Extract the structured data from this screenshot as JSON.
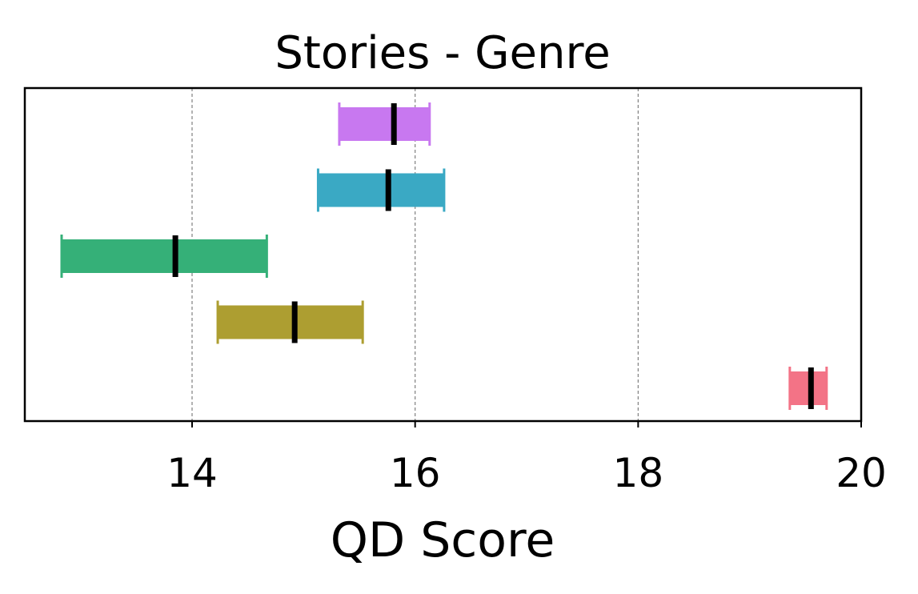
{
  "chart_data": {
    "type": "bar",
    "orientation": "horizontal",
    "title": "Stories - Genre",
    "xlabel": "QD Score",
    "ylabel": "",
    "xlim": [
      12.5,
      20.0
    ],
    "xticks": [
      14,
      16,
      18,
      20
    ],
    "xtick_labels": [
      "14",
      "16",
      "18",
      "20"
    ],
    "grid": "x-dashed",
    "series": [
      {
        "color": "#c878f0",
        "low": 15.32,
        "high": 16.13,
        "mean": 15.81
      },
      {
        "color": "#3aa9c4",
        "low": 15.13,
        "high": 16.26,
        "mean": 15.76
      },
      {
        "color": "#35b078",
        "low": 12.83,
        "high": 14.67,
        "mean": 13.85
      },
      {
        "color": "#ad9e31",
        "low": 14.23,
        "high": 15.53,
        "mean": 14.92
      },
      {
        "color": "#f37386",
        "low": 19.36,
        "high": 19.69,
        "mean": 19.55
      }
    ]
  }
}
